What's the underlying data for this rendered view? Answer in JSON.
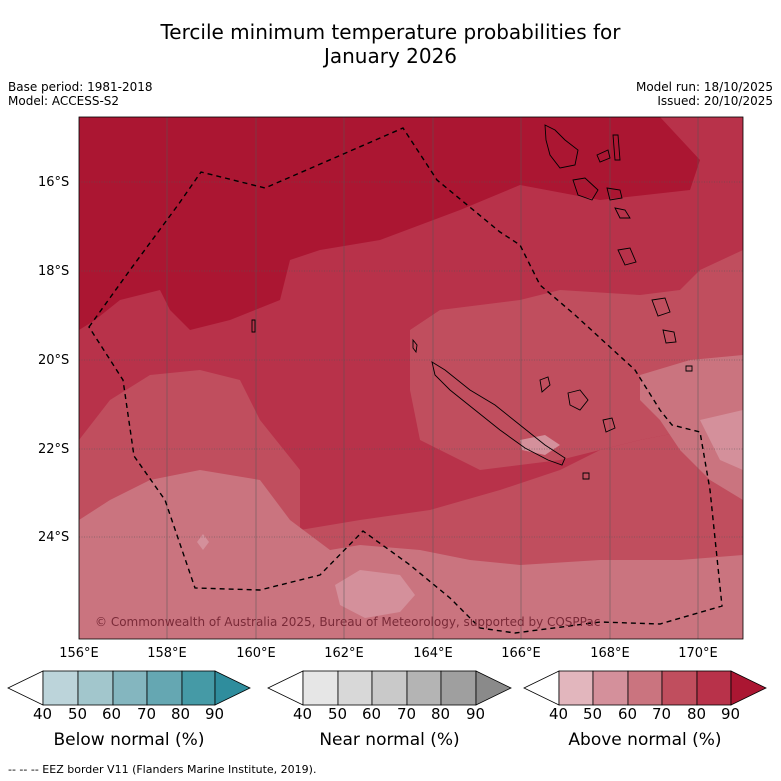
{
  "title_line1": "Tercile minimum temperature probabilities for",
  "title_line2": "January 2026",
  "base_period": "Base period: 1981-2018",
  "model": "Model: ACCESS-S2",
  "model_run": "Model run: 18/10/2025",
  "issued": "Issued: 20/10/2025",
  "copyright": "© Commonwealth of Australia 2025, Bureau of Meteorology, supported by COSPPac",
  "lat_labels": [
    "16°S",
    "18°S",
    "20°S",
    "22°S",
    "24°S"
  ],
  "lon_labels": [
    "156°E",
    "158°E",
    "160°E",
    "162°E",
    "164°E",
    "166°E",
    "168°E",
    "170°E"
  ],
  "colorbars": [
    {
      "title": "Below normal (%)",
      "ticks": [
        "40",
        "50",
        "60",
        "70",
        "80",
        "90"
      ],
      "colors": [
        "#ffffff",
        "#bcd4da",
        "#a2c6cc",
        "#84b6bf",
        "#65a7b2",
        "#459aa6",
        "#2f8d9d"
      ]
    },
    {
      "title": "Near normal (%)",
      "ticks": [
        "40",
        "50",
        "60",
        "70",
        "80",
        "90"
      ],
      "colors": [
        "#ffffff",
        "#e6e6e6",
        "#d8d8d8",
        "#c9c9c9",
        "#b4b4b4",
        "#9f9f9f",
        "#8a8a8a"
      ]
    },
    {
      "title": "Above normal (%)",
      "ticks": [
        "40",
        "50",
        "60",
        "70",
        "80",
        "90"
      ],
      "colors": [
        "#ffffff",
        "#e2b6bd",
        "#d4909b",
        "#ca747f",
        "#c04e5e",
        "#b8324a",
        "#ab1632"
      ]
    }
  ],
  "footer": "--  --  -- EEZ border V11 (Flanders Marine Institute, 2019).",
  "colors": {
    "above_90": "#ab1632",
    "above_80": "#b8324a",
    "above_70": "#c04e5e",
    "above_60": "#ca747f",
    "above_50": "#d4909b"
  }
}
